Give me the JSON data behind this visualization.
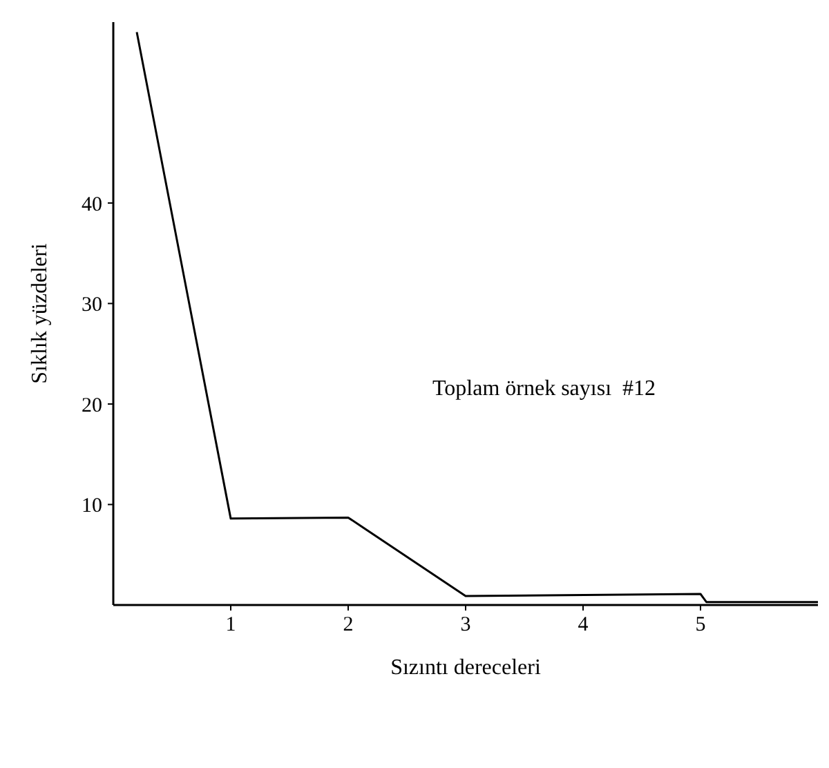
{
  "chart_data": {
    "type": "line",
    "xlabel": "Sızıntı dereceleri",
    "ylabel": "Sıklık yüzdeleri",
    "annotations": [
      "Toplam örnek sayısı  #12"
    ],
    "x": [
      0.2,
      1,
      2,
      3,
      5,
      5.05,
      6
    ],
    "series": [
      {
        "color": "#000000",
        "values": [
          57,
          8.6,
          8.7,
          0.9,
          1.1,
          0.3,
          0.3
        ]
      }
    ],
    "xlim": [
      0,
      6
    ],
    "xticks": [
      1,
      2,
      3,
      4,
      5
    ],
    "ylim": [
      0,
      58
    ],
    "yticks": [
      10,
      20,
      30,
      40
    ],
    "grid": false,
    "marker": "none",
    "line_style": "solid"
  }
}
